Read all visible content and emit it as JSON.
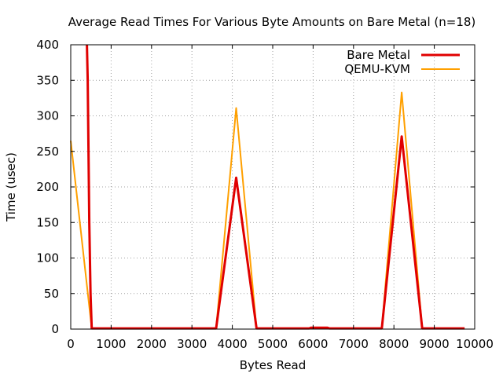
{
  "chart_data": {
    "type": "line",
    "title": "Average Read Times For Various Byte Amounts on Bare Metal (n=18)",
    "xlabel": "Bytes Read",
    "ylabel": "Time (usec)",
    "xlim": [
      0,
      10000
    ],
    "ylim": [
      0,
      400
    ],
    "x_ticks": [
      0,
      1000,
      2000,
      3000,
      4000,
      5000,
      6000,
      7000,
      8000,
      9000,
      10000
    ],
    "y_ticks": [
      0,
      50,
      100,
      150,
      200,
      250,
      300,
      350,
      400
    ],
    "grid": true,
    "legend_position": "top-right",
    "series": [
      {
        "name": "Bare Metal",
        "color": "#e00000",
        "points": [
          [
            400,
            400
          ],
          [
            420,
            350
          ],
          [
            440,
            250
          ],
          [
            460,
            150
          ],
          [
            490,
            50
          ],
          [
            520,
            1
          ],
          [
            3600,
            1
          ],
          [
            4096,
            213
          ],
          [
            4600,
            1
          ],
          [
            5900,
            1
          ],
          [
            5950,
            2
          ],
          [
            6350,
            2
          ],
          [
            6400,
            1
          ],
          [
            7700,
            1
          ],
          [
            8192,
            271
          ],
          [
            8700,
            1
          ],
          [
            9750,
            1
          ]
        ]
      },
      {
        "name": "QEMU-KVM",
        "color": "#ffa000",
        "points": [
          [
            0,
            265
          ],
          [
            520,
            1
          ],
          [
            3600,
            1
          ],
          [
            4096,
            311
          ],
          [
            4600,
            1
          ],
          [
            7700,
            1
          ],
          [
            8192,
            333
          ],
          [
            8700,
            1
          ],
          [
            9750,
            1
          ]
        ]
      }
    ]
  }
}
